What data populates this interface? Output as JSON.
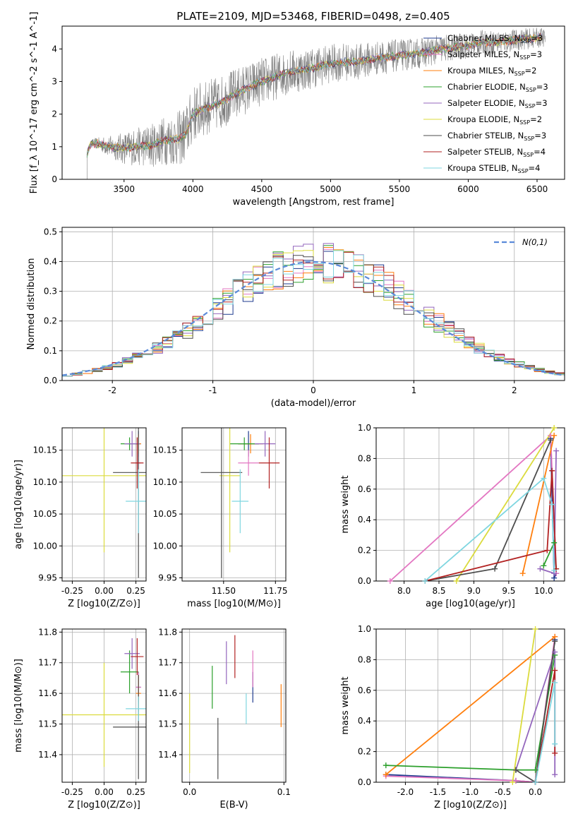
{
  "figure_title": "PLATE=2109, MJD=53468, FIBERID=0498, z=0.405",
  "colors": {
    "Chabrier MILES": "#1f3b8f",
    "Salpeter MILES": "#e377c2",
    "Kroupa MILES": "#ff7f0e",
    "Chabrier ELODIE": "#2ca02c",
    "Salpeter ELODIE": "#9467bd",
    "Kroupa ELODIE": "#dbdb3d",
    "Chabrier STELIB": "#4d4d4d",
    "Salpeter STELIB": "#b22222",
    "Kroupa STELIB": "#7fd6e0",
    "data": "#808080",
    "gauss": "#5b8ad9"
  },
  "legend_spectrum": [
    "Chabrier MILES, N_SSP=3",
    "Salpeter MILES, N_SSP=3",
    "Kroupa MILES, N_SSP=2",
    "Chabrier ELODIE, N_SSP=3",
    "Salpeter ELODIE, N_SSP=3",
    "Kroupa ELODIE, N_SSP=2",
    "Chabrier STELIB, N_SSP=3",
    "Salpeter STELIB, N_SSP=4",
    "Kroupa STELIB, N_SSP=4"
  ],
  "legend_hist": "N(0,1)",
  "chart_data": [
    {
      "id": "spectrum",
      "type": "line",
      "title": "PLATE=2109, MJD=53468, FIBERID=0498, z=0.405",
      "xlabel": "wavelength [Angstrom, rest frame]",
      "ylabel": "Flux [f_λ 10^-17 erg cm^-2 s^-1 A^-1]",
      "xlim": [
        3050,
        6700
      ],
      "ylim": [
        0,
        4.7
      ],
      "xticks": [
        3500,
        4000,
        4500,
        5000,
        5500,
        6000,
        6500
      ],
      "yticks": [
        0,
        1,
        2,
        3,
        4
      ],
      "model_continuum": [
        [
          3220,
          0
        ],
        [
          3230,
          0.8
        ],
        [
          3260,
          1.1
        ],
        [
          3300,
          1.1
        ],
        [
          3400,
          1.0
        ],
        [
          3500,
          0.95
        ],
        [
          3600,
          1.0
        ],
        [
          3700,
          1.05
        ],
        [
          3800,
          1.2
        ],
        [
          3900,
          1.25
        ],
        [
          3950,
          1.4
        ],
        [
          4000,
          2.0
        ],
        [
          4100,
          2.2
        ],
        [
          4200,
          2.35
        ],
        [
          4300,
          2.6
        ],
        [
          4400,
          2.8
        ],
        [
          4500,
          3.0
        ],
        [
          4600,
          3.15
        ],
        [
          4700,
          3.3
        ],
        [
          4800,
          3.35
        ],
        [
          4900,
          3.45
        ],
        [
          5000,
          3.55
        ],
        [
          5100,
          3.6
        ],
        [
          5200,
          3.6
        ],
        [
          5300,
          3.7
        ],
        [
          5400,
          3.75
        ],
        [
          5500,
          3.8
        ],
        [
          5600,
          3.85
        ],
        [
          5700,
          3.9
        ],
        [
          5800,
          4.0
        ],
        [
          5900,
          4.05
        ],
        [
          6000,
          4.1
        ],
        [
          6100,
          4.2
        ],
        [
          6200,
          4.2
        ],
        [
          6300,
          4.25
        ],
        [
          6400,
          4.3
        ],
        [
          6530,
          4.35
        ]
      ],
      "data_range": [
        3220,
        6560
      ],
      "data_noise": [
        [
          3220,
          0.05
        ],
        [
          3500,
          0.5
        ],
        [
          3950,
          0.9
        ],
        [
          4300,
          0.8
        ],
        [
          5000,
          0.6
        ],
        [
          6000,
          0.4
        ],
        [
          6560,
          0.3
        ]
      ]
    },
    {
      "id": "residuals",
      "type": "histogram",
      "xlabel": "(data-model)/error",
      "ylabel": "Normed distribution",
      "xlim": [
        -2.5,
        2.5
      ],
      "ylim": [
        0,
        0.515
      ],
      "xticks": [
        -2,
        -1,
        0,
        1,
        2
      ],
      "yticks": [
        0.0,
        0.1,
        0.2,
        0.3,
        0.4,
        0.5
      ],
      "bin_width": 0.1,
      "bin_start": -2.5,
      "series_note": "one step histogram per model, values scattered around N(0,1)",
      "gauss_mean": 0,
      "gauss_sigma": 1
    },
    {
      "id": "Z_age",
      "type": "errorbar",
      "xlabel": "Z [log10(Z/Z⊙)]",
      "ylabel": "age  [log10(age/yr)]",
      "xlim": [
        -0.33,
        0.33
      ],
      "ylim": [
        9.945,
        10.185
      ],
      "xticks": [
        -0.25,
        0.0,
        0.25
      ],
      "yticks": [
        9.95,
        10.0,
        10.05,
        10.1,
        10.15
      ],
      "points": [
        {
          "model": "Chabrier MILES",
          "x": 0.27,
          "y": 10.16,
          "xe": 0.02,
          "ye": 0.02
        },
        {
          "model": "Salpeter MILES",
          "x": 0.27,
          "y": 10.13,
          "xe": 0.02,
          "ye": 0.02
        },
        {
          "model": "Kroupa MILES",
          "x": 0.27,
          "y": 10.16,
          "xe": 0.02,
          "ye": 0.015
        },
        {
          "model": "Chabrier ELODIE",
          "x": 0.2,
          "y": 10.16,
          "xe": 0.07,
          "ye": 0.01
        },
        {
          "model": "Salpeter ELODIE",
          "x": 0.22,
          "y": 10.16,
          "xe": 0.06,
          "ye": 0.02
        },
        {
          "model": "Kroupa ELODIE",
          "x": 0.0,
          "y": 10.11,
          "xe": 0.33,
          "ye": 0.12
        },
        {
          "model": "Chabrier STELIB",
          "x": 0.27,
          "y": 10.115,
          "xe": 0.2,
          "ye": 0.165
        },
        {
          "model": "Salpeter STELIB",
          "x": 0.26,
          "y": 10.13,
          "xe": 0.05,
          "ye": 0.04
        },
        {
          "model": "Kroupa STELIB",
          "x": 0.27,
          "y": 10.07,
          "xe": 0.1,
          "ye": 0.05
        }
      ]
    },
    {
      "id": "mass_age",
      "type": "errorbar",
      "xlabel": "mass [log10(M/M⊙)]",
      "ylabel": "",
      "xlim": [
        11.3,
        11.8
      ],
      "ylim": [
        9.945,
        10.185
      ],
      "xticks": [
        11.5,
        11.75
      ],
      "yticks": [
        9.95,
        10.0,
        10.05,
        10.1,
        10.15
      ],
      "points": [
        {
          "model": "Chabrier MILES",
          "x": 11.62,
          "y": 10.16,
          "xe": 0.05,
          "ye": 0.02
        },
        {
          "model": "Salpeter MILES",
          "x": 11.62,
          "y": 10.13,
          "xe": 0.05,
          "ye": 0.02
        },
        {
          "model": "Kroupa MILES",
          "x": 11.63,
          "y": 10.16,
          "xe": 0.06,
          "ye": 0.015
        },
        {
          "model": "Chabrier ELODIE",
          "x": 11.6,
          "y": 10.16,
          "xe": 0.07,
          "ye": 0.01
        },
        {
          "model": "Salpeter ELODIE",
          "x": 11.7,
          "y": 10.16,
          "xe": 0.05,
          "ye": 0.02
        },
        {
          "model": "Kroupa ELODIE",
          "x": 11.53,
          "y": 10.11,
          "xe": 0.05,
          "ye": 0.12
        },
        {
          "model": "Chabrier STELIB",
          "x": 11.49,
          "y": 10.115,
          "xe": 0.1,
          "ye": 0.165
        },
        {
          "model": "Salpeter STELIB",
          "x": 11.72,
          "y": 10.13,
          "xe": 0.05,
          "ye": 0.04
        },
        {
          "model": "Kroupa STELIB",
          "x": 11.58,
          "y": 10.07,
          "xe": 0.04,
          "ye": 0.05
        }
      ]
    },
    {
      "id": "age_weight",
      "type": "line",
      "xlabel": "age  [log10(age/yr)]",
      "ylabel": "mass weight",
      "xlim": [
        7.6,
        10.3
      ],
      "ylim": [
        0,
        1.0
      ],
      "xticks": [
        8.0,
        8.5,
        9.0,
        9.5,
        10.0
      ],
      "yticks": [
        0.0,
        0.2,
        0.4,
        0.6,
        0.8,
        1.0
      ],
      "series": [
        {
          "model": "Chabrier MILES",
          "points": [
            [
              10.1,
              0.93
            ],
            [
              10.15,
              0.02
            ],
            [
              10.18,
              0.05
            ]
          ]
        },
        {
          "model": "Salpeter MILES",
          "points": [
            [
              7.8,
              0.0
            ],
            [
              10.1,
              0.95
            ],
            [
              10.18,
              0.05
            ]
          ]
        },
        {
          "model": "Kroupa MILES",
          "points": [
            [
              9.7,
              0.05
            ],
            [
              10.15,
              0.95
            ]
          ]
        },
        {
          "model": "Chabrier ELODIE",
          "points": [
            [
              10.0,
              0.1
            ],
            [
              10.15,
              0.25
            ],
            [
              10.18,
              0.08
            ]
          ]
        },
        {
          "model": "Salpeter ELODIE",
          "points": [
            [
              9.95,
              0.08
            ],
            [
              10.15,
              0.05
            ],
            [
              10.18,
              0.85
            ]
          ]
        },
        {
          "model": "Kroupa ELODIE",
          "points": [
            [
              8.75,
              0.0
            ],
            [
              10.15,
              1.0
            ]
          ]
        },
        {
          "model": "Chabrier STELIB",
          "points": [
            [
              8.3,
              0.0
            ],
            [
              9.3,
              0.08
            ],
            [
              10.1,
              0.92
            ]
          ]
        },
        {
          "model": "Salpeter STELIB",
          "points": [
            [
              8.3,
              0.0
            ],
            [
              10.05,
              0.2
            ],
            [
              10.12,
              0.72
            ],
            [
              10.18,
              0.08
            ]
          ]
        },
        {
          "model": "Kroupa STELIB",
          "points": [
            [
              8.3,
              0.0
            ],
            [
              10.0,
              0.67
            ],
            [
              10.12,
              0.5
            ],
            [
              10.15,
              0.07
            ]
          ]
        }
      ]
    },
    {
      "id": "Z_mass",
      "type": "errorbar",
      "xlabel": "Z [log10(Z/Z⊙)]",
      "ylabel": "mass [log10(M/M⊙)]",
      "xlim": [
        -0.33,
        0.33
      ],
      "ylim": [
        11.31,
        11.81
      ],
      "xticks": [
        -0.25,
        0.0,
        0.25
      ],
      "yticks": [
        11.4,
        11.5,
        11.6,
        11.7,
        11.8
      ],
      "points": [
        {
          "model": "Chabrier MILES",
          "x": 0.27,
          "y": 11.62,
          "xe": 0.02,
          "ye": 0.05
        },
        {
          "model": "Salpeter MILES",
          "x": 0.27,
          "y": 11.62,
          "xe": 0.02,
          "ye": 0.05
        },
        {
          "model": "Kroupa MILES",
          "x": 0.27,
          "y": 11.6,
          "xe": 0.02,
          "ye": 0.06
        },
        {
          "model": "Chabrier ELODIE",
          "x": 0.2,
          "y": 11.67,
          "xe": 0.07,
          "ye": 0.07
        },
        {
          "model": "Salpeter ELODIE",
          "x": 0.22,
          "y": 11.73,
          "xe": 0.06,
          "ye": 0.05
        },
        {
          "model": "Kroupa ELODIE",
          "x": 0.0,
          "y": 11.53,
          "xe": 0.33,
          "ye": 0.17
        },
        {
          "model": "Chabrier STELIB",
          "x": 0.27,
          "y": 11.49,
          "xe": 0.2,
          "ye": 0.17
        },
        {
          "model": "Salpeter STELIB",
          "x": 0.26,
          "y": 11.72,
          "xe": 0.05,
          "ye": 0.06
        },
        {
          "model": "Kroupa STELIB",
          "x": 0.27,
          "y": 11.55,
          "xe": 0.1,
          "ye": 0.04
        }
      ]
    },
    {
      "id": "ebv_mass",
      "type": "errorbar",
      "xlabel": "E(B-V)",
      "ylabel": "",
      "xlim": [
        -0.008,
        0.102
      ],
      "ylim": [
        11.31,
        11.81
      ],
      "xticks": [
        0.0,
        0.1
      ],
      "yticks": [
        11.4,
        11.5,
        11.6,
        11.7,
        11.8
      ],
      "points": [
        {
          "model": "Chabrier MILES",
          "x": 0.067,
          "y": 11.62,
          "xe": 0,
          "ye": 0.05
        },
        {
          "model": "Salpeter MILES",
          "x": 0.067,
          "y": 11.68,
          "xe": 0,
          "ye": 0.06
        },
        {
          "model": "Kroupa MILES",
          "x": 0.097,
          "y": 11.56,
          "xe": 0,
          "ye": 0.07
        },
        {
          "model": "Chabrier ELODIE",
          "x": 0.024,
          "y": 11.62,
          "xe": 0,
          "ye": 0.07
        },
        {
          "model": "Salpeter ELODIE",
          "x": 0.039,
          "y": 11.7,
          "xe": 0,
          "ye": 0.07
        },
        {
          "model": "Kroupa ELODIE",
          "x": 0.0,
          "y": 11.47,
          "xe": 0,
          "ye": 0.13
        },
        {
          "model": "Chabrier STELIB",
          "x": 0.03,
          "y": 11.42,
          "xe": 0,
          "ye": 0.1
        },
        {
          "model": "Salpeter STELIB",
          "x": 0.048,
          "y": 11.72,
          "xe": 0,
          "ye": 0.07
        },
        {
          "model": "Kroupa STELIB",
          "x": 0.06,
          "y": 11.55,
          "xe": 0,
          "ye": 0.05
        }
      ]
    },
    {
      "id": "Z_weight",
      "type": "line",
      "xlabel": "Z [log10(Z/Z⊙)]",
      "ylabel": "mass weight",
      "xlim": [
        -2.45,
        0.45
      ],
      "ylim": [
        0,
        1.0
      ],
      "xticks": [
        -2.0,
        -1.5,
        -1.0,
        -0.5,
        0.0
      ],
      "yticks": [
        0.0,
        0.2,
        0.4,
        0.6,
        0.8,
        1.0
      ],
      "series": [
        {
          "model": "Chabrier MILES",
          "points": [
            [
              -2.3,
              0.05
            ],
            [
              -0.3,
              0.01
            ],
            [
              0.0,
              0.0
            ],
            [
              0.3,
              0.93
            ]
          ]
        },
        {
          "model": "Salpeter MILES",
          "points": [
            [
              -2.3,
              0.04
            ],
            [
              -0.3,
              0.01
            ],
            [
              0.0,
              0.0
            ],
            [
              0.3,
              0.95
            ]
          ]
        },
        {
          "model": "Kroupa MILES",
          "points": [
            [
              -2.3,
              0.05
            ],
            [
              0.3,
              0.95
            ]
          ]
        },
        {
          "model": "Chabrier ELODIE",
          "points": [
            [
              -2.3,
              0.11
            ],
            [
              -0.3,
              0.08
            ],
            [
              0.0,
              0.08
            ],
            [
              0.3,
              0.83
            ]
          ]
        },
        {
          "model": "Salpeter ELODIE",
          "points": [
            [
              -0.3,
              0.08
            ],
            [
              0.3,
              0.85
            ],
            [
              0.3,
              0.05
            ]
          ]
        },
        {
          "model": "Kroupa ELODIE",
          "points": [
            [
              -0.35,
              0.0
            ],
            [
              0.0,
              1.0
            ]
          ]
        },
        {
          "model": "Chabrier STELIB",
          "points": [
            [
              -0.3,
              0.08
            ],
            [
              0.0,
              0.0
            ],
            [
              0.3,
              0.92
            ]
          ]
        },
        {
          "model": "Salpeter STELIB",
          "points": [
            [
              0.0,
              0.0
            ],
            [
              0.3,
              0.73
            ],
            [
              0.3,
              0.19
            ]
          ]
        },
        {
          "model": "Kroupa STELIB",
          "points": [
            [
              0.0,
              0.0
            ],
            [
              0.3,
              0.65
            ],
            [
              0.3,
              0.25
            ]
          ]
        }
      ]
    }
  ]
}
